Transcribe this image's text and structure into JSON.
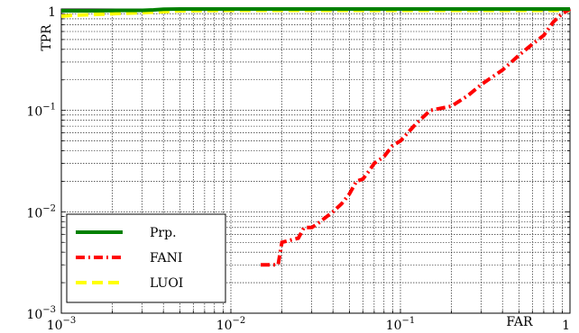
{
  "chart_data": {
    "type": "line",
    "title": "",
    "xlabel": "FAR",
    "ylabel": "TPR",
    "xscale": "log",
    "yscale": "log",
    "xlim": [
      0.001,
      1
    ],
    "ylim": [
      0.001,
      1
    ],
    "grid": true,
    "x_ticks": [
      {
        "value": 0.001,
        "base": "10",
        "exp": "−3"
      },
      {
        "value": 0.01,
        "base": "10",
        "exp": "−2"
      },
      {
        "value": 0.1,
        "base": "10",
        "exp": "−1"
      },
      {
        "value": 1,
        "base": "1",
        "exp": ""
      }
    ],
    "y_ticks": [
      {
        "value": 0.001,
        "base": "10",
        "exp": "−3"
      },
      {
        "value": 0.01,
        "base": "10",
        "exp": "−2"
      },
      {
        "value": 0.1,
        "base": "10",
        "exp": "−1"
      },
      {
        "value": 1,
        "base": "1",
        "exp": ""
      }
    ],
    "legend_position": "bottom-left",
    "series": [
      {
        "name": "Prp.",
        "color": "#008000",
        "dash": "solid",
        "x": [
          0.001,
          0.0015,
          0.002,
          0.003,
          0.0035,
          0.004,
          0.005,
          0.01,
          0.1,
          1
        ],
        "y": [
          0.96,
          0.96,
          0.965,
          0.97,
          0.98,
          0.995,
          1,
          1,
          1,
          1
        ]
      },
      {
        "name": "FANI",
        "color": "#ff0000",
        "dash": "dashdot",
        "x": [
          0.015,
          0.019,
          0.02,
          0.025,
          0.027,
          0.03,
          0.032,
          0.04,
          0.045,
          0.05,
          0.055,
          0.06,
          0.065,
          0.07,
          0.08,
          0.09,
          0.1,
          0.12,
          0.13,
          0.15,
          0.2,
          0.25,
          0.3,
          0.4,
          0.5,
          0.6,
          0.7,
          0.8,
          0.9,
          1
        ],
        "y": [
          0.003,
          0.003,
          0.005,
          0.0055,
          0.007,
          0.007,
          0.0075,
          0.01,
          0.012,
          0.015,
          0.02,
          0.021,
          0.025,
          0.03,
          0.035,
          0.045,
          0.05,
          0.07,
          0.08,
          0.1,
          0.11,
          0.14,
          0.18,
          0.25,
          0.35,
          0.45,
          0.55,
          0.75,
          0.9,
          1
        ]
      },
      {
        "name": "LUOI",
        "color": "#ffff00",
        "dash": "dashed",
        "x": [
          0.001,
          0.0012,
          0.0015,
          0.002,
          0.003,
          0.004,
          0.005,
          0.01,
          0.1,
          1
        ],
        "y": [
          0.85,
          0.87,
          0.88,
          0.9,
          0.92,
          0.94,
          0.96,
          0.97,
          0.97,
          0.97
        ]
      }
    ]
  }
}
